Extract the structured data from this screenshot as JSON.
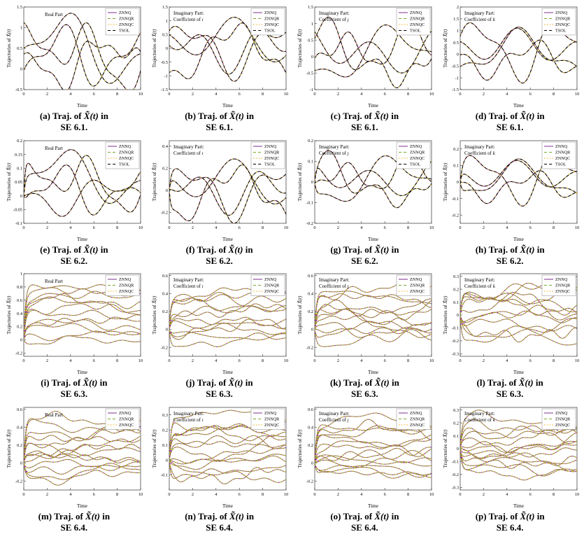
{
  "page": {
    "background": "#ffffff"
  },
  "legend_styles": {
    "ZNNQ": {
      "color": "#7E2F8E",
      "dash": ""
    },
    "ZNNQR": {
      "color": "#77AC30",
      "dash": "4,3"
    },
    "ZNNQC": {
      "color": "#EDB120",
      "dash": "1.6,2.2"
    },
    "TSOL": {
      "color": "#000000",
      "dash": "4,3.2"
    }
  },
  "axes_common": {
    "xlabel": "Time",
    "ylabel": "Trajectories of X̃(t)",
    "xlim": [
      0,
      10
    ],
    "xticks": [
      0,
      2,
      4,
      6,
      8,
      10
    ]
  },
  "chart_data": [
    {
      "id": "a",
      "type": "line",
      "caption": {
        "label": "(a)",
        "line1": "Traj. of X̃(t) in",
        "line2": "SE 6.1."
      },
      "inner_label": [
        "Real Part"
      ],
      "ylim": [
        -0.5,
        1.5
      ],
      "yticks": [
        -0.5,
        0,
        0.5,
        1,
        1.5
      ],
      "legend": [
        "ZNNQ",
        "ZNNQR",
        "ZNNQC",
        "TSOL"
      ],
      "ramp": false,
      "series": [
        {
          "o": 0.35,
          "h": [
            [
              0.55,
              1.1,
              1.6
            ],
            [
              0.35,
              0.5,
              0.3
            ],
            [
              0.2,
              2.2,
              2.5
            ]
          ]
        },
        {
          "o": 0.32,
          "h": [
            [
              0.58,
              0.9,
              -1.2
            ],
            [
              0.28,
              1.8,
              0.8
            ]
          ]
        },
        {
          "o": 0.2,
          "h": [
            [
              0.45,
              0.7,
              2.8
            ],
            [
              0.25,
              1.5,
              -0.5
            ],
            [
              0.15,
              2.6,
              1.0
            ]
          ]
        },
        {
          "o": 0.5,
          "h": [
            [
              0.7,
              0.62,
              -0.4
            ],
            [
              0.3,
              1.3,
              2.0
            ]
          ]
        }
      ]
    },
    {
      "id": "b",
      "type": "line",
      "caption": {
        "label": "(b)",
        "line1": "Traj. of X̃(t) in",
        "line2": "SE 6.1."
      },
      "inner_label": [
        "Imaginary Part:",
        "Coefficient of ı"
      ],
      "ylim": [
        -1.5,
        1.5
      ],
      "yticks": [
        -1.5,
        -1,
        -0.5,
        0,
        0.5,
        1,
        1.5
      ],
      "legend": [
        "ZNNQ",
        "ZNNQR",
        "ZNNQC",
        "TSOL"
      ],
      "ramp": false,
      "series": [
        {
          "o": 0,
          "h": [
            [
              0.8,
              0.8,
              0.3
            ],
            [
              0.4,
              1.7,
              1.5
            ]
          ]
        },
        {
          "o": -0.2,
          "h": [
            [
              0.9,
              0.6,
              -1.8
            ],
            [
              0.3,
              2.1,
              0.7
            ]
          ]
        },
        {
          "o": 0.2,
          "h": [
            [
              0.6,
              1.0,
              2.2
            ],
            [
              0.35,
              0.45,
              -0.6
            ]
          ]
        },
        {
          "o": 0,
          "h": [
            [
              0.5,
              1.4,
              -2.5
            ],
            [
              0.45,
              0.75,
              1.1
            ]
          ]
        }
      ]
    },
    {
      "id": "c",
      "type": "line",
      "caption": {
        "label": "(c)",
        "line1": "Traj. of X̃(t) in",
        "line2": "SE 6.1."
      },
      "inner_label": [
        "Imaginary Part:",
        "Coefficient of ȷ"
      ],
      "ylim": [
        -1,
        1.5
      ],
      "yticks": [
        -1,
        -0.5,
        0,
        0.5,
        1,
        1.5
      ],
      "legend": [
        "ZNNQ",
        "ZNNQR",
        "ZNNQC",
        "TSOL"
      ],
      "ramp": false,
      "series": [
        {
          "o": 0.25,
          "h": [
            [
              0.7,
              0.85,
              0.9
            ],
            [
              0.3,
              1.9,
              -1.0
            ]
          ]
        },
        {
          "o": 0.05,
          "h": [
            [
              0.72,
              0.55,
              -2.2
            ],
            [
              0.28,
              1.3,
              0.4
            ]
          ]
        },
        {
          "o": 0.2,
          "h": [
            [
              0.5,
              1.1,
              2.6
            ],
            [
              0.3,
              0.5,
              1.8
            ]
          ]
        },
        {
          "o": -0.1,
          "h": [
            [
              0.6,
              0.7,
              -0.3
            ],
            [
              0.25,
              2.3,
              1.2
            ]
          ]
        }
      ]
    },
    {
      "id": "d",
      "type": "line",
      "caption": {
        "label": "(d)",
        "line1": "Traj. of X̃(t) in",
        "line2": "SE 6.1."
      },
      "inner_label": [
        "Imaginary Part:",
        "Coefficient of k"
      ],
      "ylim": [
        -1.5,
        2
      ],
      "yticks": [
        -1.5,
        -1,
        -0.5,
        0,
        0.5,
        1,
        1.5,
        2
      ],
      "legend": [
        "ZNNQ",
        "ZNNQR",
        "ZNNQC",
        "TSOL"
      ],
      "ramp": false,
      "series": [
        {
          "o": 0.2,
          "h": [
            [
              1.1,
              0.9,
              0.2
            ],
            [
              0.4,
              1.8,
              1.0
            ]
          ]
        },
        {
          "o": 0,
          "h": [
            [
              0.8,
              0.6,
              -1.5
            ],
            [
              0.35,
              1.4,
              0.9
            ]
          ]
        },
        {
          "o": 0.25,
          "h": [
            [
              0.55,
              1.2,
              2.0
            ],
            [
              0.3,
              0.5,
              -0.8
            ]
          ]
        },
        {
          "o": -0.2,
          "h": [
            [
              0.6,
              0.8,
              2.9
            ],
            [
              0.3,
              2.0,
              0.1
            ]
          ]
        }
      ]
    },
    {
      "id": "e",
      "type": "line",
      "caption": {
        "label": "(e)",
        "line1": "Traj. of X̃(t) in",
        "line2": "SE 6.2."
      },
      "inner_label": [
        "Real Part"
      ],
      "ylim": [
        -0.1,
        0.2
      ],
      "yticks": [
        -0.1,
        -0.05,
        0,
        0.05,
        0.1,
        0.15,
        0.2
      ],
      "legend": [
        "ZNNQ",
        "ZNNQR",
        "ZNNQC",
        "TSOL"
      ],
      "ramp": true,
      "series": [
        {
          "o": 0.05,
          "h": [
            [
              0.07,
              1.1,
              1.6
            ],
            [
              0.04,
              0.5,
              0.3
            ],
            [
              0.025,
              2.2,
              2.5
            ]
          ]
        },
        {
          "o": 0.02,
          "h": [
            [
              0.07,
              0.9,
              -1.2
            ],
            [
              0.035,
              1.8,
              0.8
            ]
          ]
        },
        {
          "o": 0,
          "h": [
            [
              0.05,
              0.7,
              2.8
            ],
            [
              0.03,
              1.5,
              -0.5
            ]
          ]
        },
        {
          "o": 0.07,
          "h": [
            [
              0.08,
              0.62,
              -0.4
            ],
            [
              0.035,
              1.3,
              2.0
            ]
          ]
        }
      ]
    },
    {
      "id": "f",
      "type": "line",
      "caption": {
        "label": "(f)",
        "line1": "Traj. of X̃(t) in",
        "line2": "SE 6.2."
      },
      "inner_label": [
        "Imaginary Part:",
        "Coefficient of ı"
      ],
      "ylim": [
        -0.3,
        0.45
      ],
      "yticks": [
        -0.2,
        0,
        0.2,
        0.4
      ],
      "legend": [
        "ZNNQ",
        "ZNNQR",
        "ZNNQC",
        "TSOL"
      ],
      "ramp": true,
      "series": [
        {
          "o": 0,
          "h": [
            [
              0.2,
              0.8,
              0.3
            ],
            [
              0.1,
              1.7,
              1.5
            ]
          ]
        },
        {
          "o": -0.05,
          "h": [
            [
              0.22,
              0.6,
              -1.8
            ],
            [
              0.08,
              2.1,
              0.7
            ]
          ]
        },
        {
          "o": 0.05,
          "h": [
            [
              0.15,
              1.0,
              2.2
            ],
            [
              0.09,
              0.45,
              -0.6
            ]
          ]
        },
        {
          "o": 0,
          "h": [
            [
              0.12,
              1.4,
              -2.5
            ],
            [
              0.11,
              0.75,
              1.1
            ]
          ]
        }
      ]
    },
    {
      "id": "g",
      "type": "line",
      "caption": {
        "label": "(g)",
        "line1": "Traj. of X̃(t) in",
        "line2": "SE 6.2."
      },
      "inner_label": [
        "Imaginary Part:",
        "Coefficient of ȷ"
      ],
      "ylim": [
        -0.2,
        0.2
      ],
      "yticks": [
        -0.2,
        -0.1,
        0,
        0.1,
        0.2
      ],
      "legend": [
        "ZNNQ",
        "ZNNQR",
        "ZNNQC",
        "TSOL"
      ],
      "ramp": true,
      "series": [
        {
          "o": 0.03,
          "h": [
            [
              0.09,
              0.85,
              0.9
            ],
            [
              0.04,
              1.9,
              -1.0
            ]
          ]
        },
        {
          "o": 0,
          "h": [
            [
              0.1,
              0.55,
              -2.2
            ],
            [
              0.04,
              1.3,
              0.4
            ]
          ]
        },
        {
          "o": 0.025,
          "h": [
            [
              0.065,
              1.1,
              2.6
            ],
            [
              0.04,
              0.5,
              1.8
            ]
          ]
        },
        {
          "o": -0.015,
          "h": [
            [
              0.08,
              0.7,
              -0.3
            ],
            [
              0.03,
              2.3,
              1.2
            ]
          ]
        }
      ]
    },
    {
      "id": "h",
      "type": "line",
      "caption": {
        "label": "(h)",
        "line1": "Traj. of X̃(t) in",
        "line2": "SE 6.2."
      },
      "inner_label": [
        "Imaginary Part:",
        "Coefficient of k"
      ],
      "ylim": [
        -0.25,
        0.25
      ],
      "yticks": [
        -0.2,
        -0.1,
        0,
        0.1,
        0.2
      ],
      "legend": [
        "ZNNQ",
        "ZNNQR",
        "ZNNQC",
        "TSOL"
      ],
      "ramp": true,
      "series": [
        {
          "o": 0.025,
          "h": [
            [
              0.13,
              0.9,
              0.2
            ],
            [
              0.05,
              1.8,
              1.0
            ]
          ]
        },
        {
          "o": 0,
          "h": [
            [
              0.1,
              0.6,
              -1.5
            ],
            [
              0.04,
              1.4,
              0.9
            ]
          ]
        },
        {
          "o": 0.03,
          "h": [
            [
              0.065,
              1.2,
              2.0
            ],
            [
              0.035,
              0.5,
              -0.8
            ]
          ]
        },
        {
          "o": -0.025,
          "h": [
            [
              0.07,
              0.8,
              2.9
            ],
            [
              0.035,
              2.0,
              0.1
            ]
          ]
        }
      ]
    },
    {
      "id": "i",
      "type": "line",
      "caption": {
        "label": "(i)",
        "line1": "Traj. of X̃(t) in",
        "line2": "SE 6.3."
      },
      "inner_label": [
        "Real Part"
      ],
      "ylim": [
        -0.25,
        1
      ],
      "yticks": [
        -0.2,
        0,
        0.2,
        0.4,
        0.6,
        0.8,
        1
      ],
      "legend": [
        "ZNNQ",
        "ZNNQR",
        "ZNNQC"
      ],
      "ramp": true,
      "series_gen": {
        "n": 12,
        "offsets": [
          0.02,
          0.78
        ],
        "amp": 0.06,
        "seed": 7
      }
    },
    {
      "id": "j",
      "type": "line",
      "caption": {
        "label": "(j)",
        "line1": "Traj. of X̃(t) in",
        "line2": "SE 6.3."
      },
      "inner_label": [
        "Imaginary Part:",
        "Coefficient of ı"
      ],
      "ylim": [
        -0.3,
        0.62
      ],
      "yticks": [
        -0.2,
        0,
        0.2,
        0.4,
        0.6
      ],
      "legend": [
        "ZNNQ",
        "ZNNQR",
        "ZNNQC"
      ],
      "ramp": true,
      "series_gen": {
        "n": 12,
        "offsets": [
          -0.12,
          0.42
        ],
        "amp": 0.055,
        "seed": 8
      }
    },
    {
      "id": "k",
      "type": "line",
      "caption": {
        "label": "(k)",
        "line1": "Traj. of X̃(t) in",
        "line2": "SE 6.3."
      },
      "inner_label": [
        "Imaginary Part:",
        "Coefficient of ȷ"
      ],
      "ylim": [
        -0.3,
        0.62
      ],
      "yticks": [
        -0.2,
        0,
        0.2,
        0.4,
        0.6
      ],
      "legend": [
        "ZNNQ",
        "ZNNQR",
        "ZNNQC"
      ],
      "ramp": true,
      "series_gen": {
        "n": 12,
        "offsets": [
          -0.12,
          0.42
        ],
        "amp": 0.055,
        "seed": 9
      }
    },
    {
      "id": "l",
      "type": "line",
      "caption": {
        "label": "(l)",
        "line1": "Traj. of X̃(t) in",
        "line2": "SE 6.3."
      },
      "inner_label": [
        "Imaginary Part:",
        "Coefficient of k"
      ],
      "ylim": [
        -0.32,
        0.32
      ],
      "yticks": [
        -0.3,
        -0.2,
        -0.1,
        0,
        0.1,
        0.2,
        0.3
      ],
      "legend": [
        "ZNNQ",
        "ZNNQR",
        "ZNNQC"
      ],
      "ramp": true,
      "series_gen": {
        "n": 12,
        "offsets": [
          -0.18,
          0.22
        ],
        "amp": 0.05,
        "seed": 10
      }
    },
    {
      "id": "m",
      "type": "line",
      "caption": {
        "label": "(m)",
        "line1": "Traj. of X̃(t) in",
        "line2": "SE 6.4."
      },
      "inner_label": [
        "Real Part"
      ],
      "ylim": [
        -0.3,
        0.62
      ],
      "yticks": [
        -0.2,
        0,
        0.2,
        0.4,
        0.6
      ],
      "legend": [
        "ZNNQ",
        "ZNNQR",
        "ZNNQC"
      ],
      "ramp": true,
      "series_gen": {
        "n": 14,
        "offsets": [
          -0.15,
          0.45
        ],
        "amp": 0.05,
        "seed": 11
      }
    },
    {
      "id": "n",
      "type": "line",
      "caption": {
        "label": "(n)",
        "line1": "Traj. of X̃(t) in",
        "line2": "SE 6.4."
      },
      "inner_label": [
        "Imaginary Part:",
        "Coefficient of ı"
      ],
      "ylim": [
        -0.2,
        0.35
      ],
      "yticks": [
        -0.1,
        0,
        0.1,
        0.2,
        0.3
      ],
      "legend": [
        "ZNNQ",
        "ZNNQR",
        "ZNNQC"
      ],
      "ramp": true,
      "series_gen": {
        "n": 14,
        "offsets": [
          -0.1,
          0.28
        ],
        "amp": 0.035,
        "seed": 12
      }
    },
    {
      "id": "o",
      "type": "line",
      "caption": {
        "label": "(o)",
        "line1": "Traj. of X̃(t) in",
        "line2": "SE 6.4."
      },
      "inner_label": [
        "Imaginary Part:",
        "Coefficient of ȷ"
      ],
      "ylim": [
        -0.3,
        0.62
      ],
      "yticks": [
        -0.2,
        0,
        0.2,
        0.4,
        0.6
      ],
      "legend": [
        "ZNNQ",
        "ZNNQR",
        "ZNNQC"
      ],
      "ramp": true,
      "series_gen": {
        "n": 14,
        "offsets": [
          -0.15,
          0.45
        ],
        "amp": 0.05,
        "seed": 13
      }
    },
    {
      "id": "p",
      "type": "line",
      "caption": {
        "label": "(p)",
        "line1": "Traj. of X̃(t) in",
        "line2": "SE 6.4."
      },
      "inner_label": [
        "Imaginary Part:",
        "Coefficient of k"
      ],
      "ylim": [
        -0.32,
        0.32
      ],
      "yticks": [
        -0.3,
        -0.2,
        -0.1,
        0,
        0.1,
        0.2,
        0.3
      ],
      "legend": [
        "ZNNQ",
        "ZNNQR",
        "ZNNQC"
      ],
      "ramp": true,
      "series_gen": {
        "n": 14,
        "offsets": [
          -0.18,
          0.2
        ],
        "amp": 0.04,
        "seed": 14
      }
    }
  ]
}
